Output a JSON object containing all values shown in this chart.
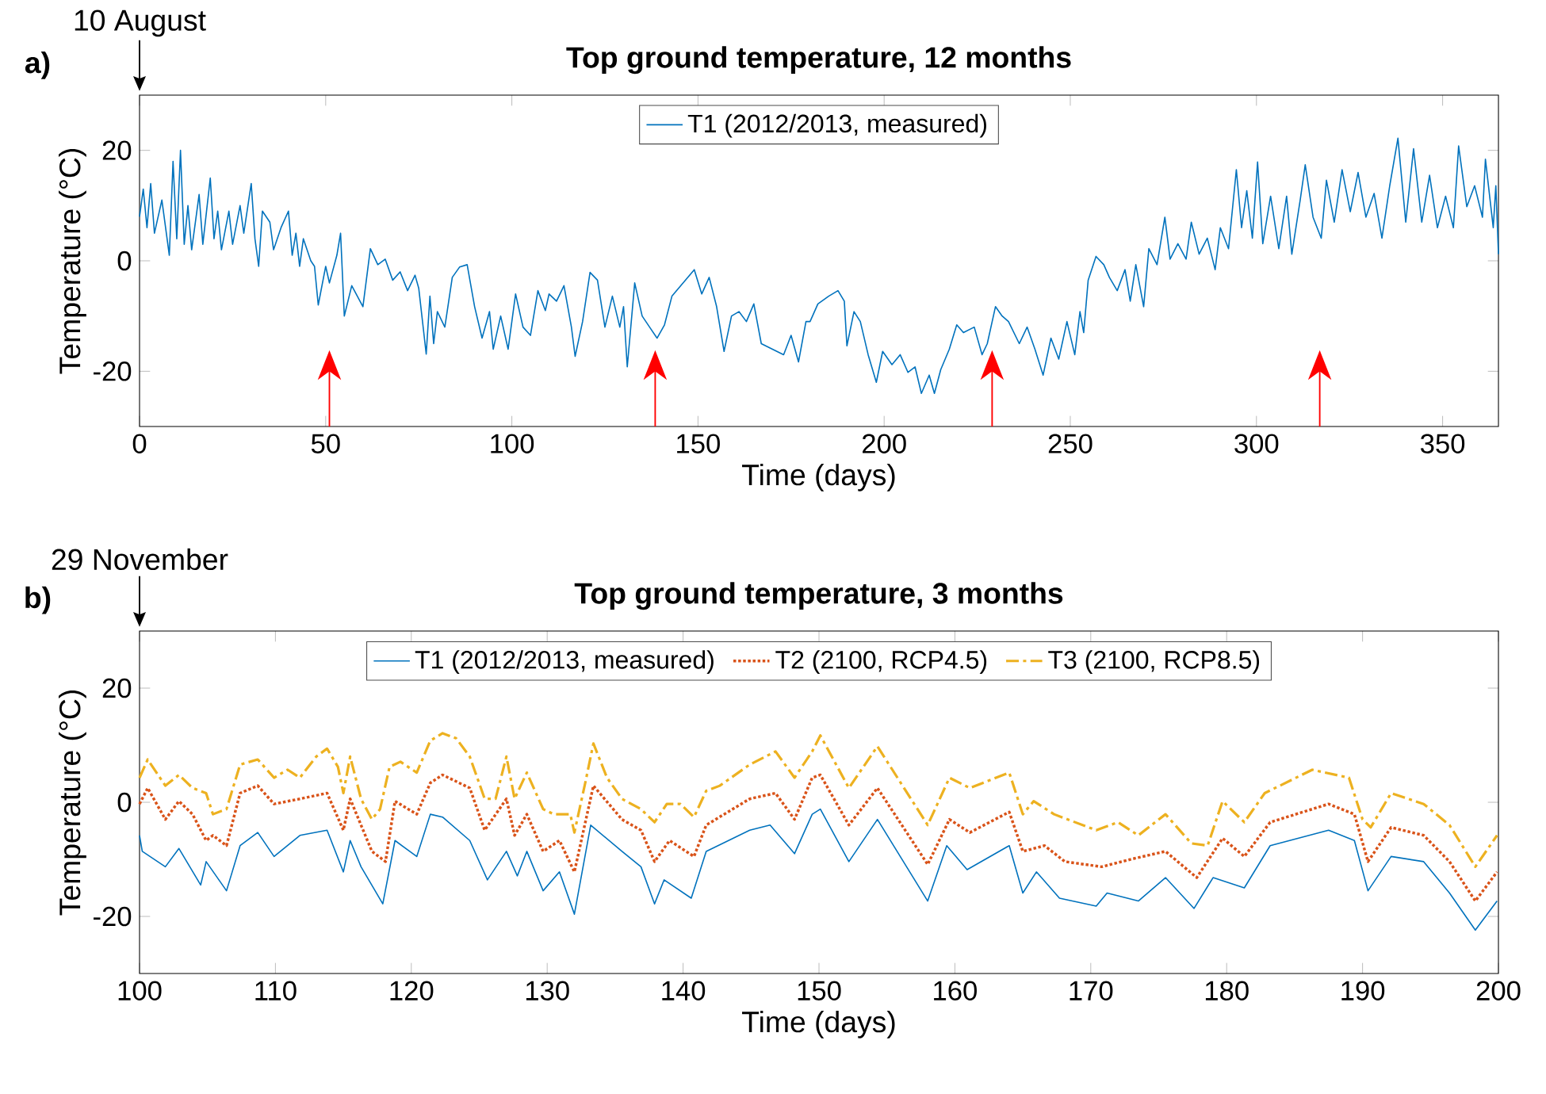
{
  "chart_data": [
    {
      "type": "line",
      "title": "Top ground temperature, 12 months",
      "xlabel": "Time (days)",
      "ylabel": "Temperature (°C)",
      "xlim": [
        0,
        365
      ],
      "ylim": [
        -30,
        30
      ],
      "xticks": [
        0,
        50,
        100,
        150,
        200,
        250,
        300,
        350
      ],
      "yticks": [
        -20,
        0,
        20
      ],
      "legend": "top",
      "annotations": [
        "a)",
        "10 August"
      ],
      "ref_lines": [
        {
          "axis": "x",
          "value": 51,
          "color": "#ff0000"
        },
        {
          "axis": "x",
          "value": 138.5,
          "color": "#ff0000"
        },
        {
          "axis": "x",
          "value": 229,
          "color": "#ff0000"
        },
        {
          "axis": "x",
          "value": 317,
          "color": "#ff0000"
        }
      ],
      "series": [
        {
          "name": "T1 (2012/2013, measured)",
          "color": "#0072bd",
          "line_style": "solid",
          "x": [
            0,
            1,
            2,
            3,
            4,
            6,
            8,
            9,
            10,
            11,
            12,
            13,
            14,
            16,
            17,
            19,
            20,
            21,
            22,
            24,
            25,
            27,
            28,
            30,
            31,
            32,
            33,
            35,
            36,
            38,
            40,
            41,
            42,
            43,
            44,
            46,
            47,
            48,
            50,
            51,
            53,
            54,
            55,
            57,
            60,
            62,
            64,
            66,
            68,
            70,
            72,
            74,
            75,
            77,
            78,
            79,
            80,
            82,
            84,
            86,
            88,
            90,
            92,
            94,
            95,
            97,
            99,
            101,
            103,
            105,
            107,
            109,
            110,
            112,
            114,
            116,
            117,
            119,
            121,
            123,
            125,
            127,
            129,
            130,
            131,
            133,
            135,
            137,
            139,
            141,
            143,
            146,
            149,
            151,
            153,
            155,
            157,
            159,
            161,
            163,
            165,
            167,
            170,
            173,
            175,
            177,
            179,
            180.1,
            182.2,
            185.1,
            187.6,
            189.3,
            190.0,
            191.9,
            193.6,
            195.7,
            197.9,
            199.6,
            202.1,
            204.3,
            206.4,
            208.3,
            210.0,
            212.1,
            213.5,
            215.2,
            217.5,
            219.5,
            221.3,
            224.2,
            226.3,
            227.7,
            229.9,
            231.7,
            233.4,
            236.3,
            238.4,
            240.5,
            242.7,
            244.8,
            246.9,
            249.1,
            251.2,
            252.6,
            253.6,
            254.8,
            256.9,
            259.0,
            260.5,
            262.6,
            264.7,
            266.1,
            267.6,
            269.7,
            271.1,
            273.3,
            275.4,
            276.8,
            278.9,
            281.1,
            282.5,
            284.6,
            286.8,
            288.9,
            290.3,
            292.5,
            294.6,
            296.0,
            297.4,
            298.9,
            300.3,
            301.7,
            303.8,
            306.0,
            308.1,
            309.5,
            311.7,
            313.1,
            315.2,
            317.4,
            318.8,
            320.9,
            323.0,
            325.2,
            327.3,
            329.4,
            331.6,
            333.7,
            335.8,
            338.0,
            340.1,
            342.2,
            344.4,
            346.5,
            348.6,
            350.8,
            352.9,
            354.3,
            356.5,
            358.6,
            360.7,
            361.5,
            363.6,
            364.3,
            365.0
          ],
          "values": [
            8,
            13,
            6,
            14,
            5,
            11,
            1,
            18,
            4,
            20,
            3,
            10,
            2,
            12,
            3,
            15,
            4,
            9,
            2,
            9,
            3,
            10,
            5,
            14,
            4,
            -1,
            9,
            7,
            2,
            6,
            9,
            1,
            5,
            -1,
            4,
            0,
            -1,
            -8,
            -1,
            -4,
            1,
            5,
            -10,
            -4.5,
            -8.3,
            2.2,
            -0.7,
            0.3,
            -3.5,
            -2,
            -5.4,
            -2.6,
            -5,
            -16.9,
            -6.4,
            -15,
            -9.2,
            -12,
            -3,
            -1.1,
            -0.7,
            -8.3,
            -14,
            -9.2,
            -16,
            -10,
            -16,
            -6,
            -12,
            -13.5,
            -5.4,
            -9,
            -6,
            -7.3,
            -4.5,
            -12,
            -17.3,
            -11,
            -2.1,
            -3.5,
            -12,
            -6.4,
            -12,
            -8.3,
            -19.2,
            -4,
            -10,
            -12,
            -14,
            -11.6,
            -6.4,
            -4,
            -1.6,
            -6,
            -3,
            -8.3,
            -16.4,
            -10,
            -9.2,
            -11,
            -7.8,
            -15,
            -16,
            -17,
            -13.5,
            -18.3,
            -11,
            -11,
            -7.8,
            -6.4,
            -5.4,
            -7.3,
            -15.4,
            -9.2,
            -11,
            -17,
            -22,
            -16.4,
            -18.8,
            -17,
            -20.2,
            -19.2,
            -24,
            -20.7,
            -24,
            -19.7,
            -16,
            -11.6,
            -13,
            -12,
            -17,
            -15,
            -8.3,
            -10,
            -11,
            -15,
            -12,
            -16,
            -20.7,
            -14,
            -17.8,
            -11,
            -17,
            -9.2,
            -13,
            -3.5,
            0.8,
            -0.7,
            -3,
            -5.4,
            -1.6,
            -7.3,
            -0.7,
            -8.3,
            2.2,
            -0.7,
            7.9,
            0.3,
            3.1,
            0.3,
            7,
            1.2,
            4.1,
            -1.6,
            6,
            2.2,
            16.5,
            6,
            12.7,
            4.1,
            17.9,
            3.1,
            11.7,
            2.2,
            11.7,
            1.2,
            10.8,
            17.4,
            7.9,
            4.1,
            14.6,
            7,
            16.5,
            8.9,
            16,
            7.9,
            12.2,
            4.1,
            13.6,
            22.2,
            7,
            20.3,
            7,
            15.5,
            6,
            11.7,
            6,
            20.8,
            9.8,
            13.6,
            7.9,
            18.4,
            6,
            13.6,
            1.2
          ]
        }
      ]
    },
    {
      "type": "line",
      "title": "Top ground temperature, 3 months",
      "xlabel": "Time (days)",
      "ylabel": "Temperature (°C)",
      "xlim": [
        100,
        200
      ],
      "ylim": [
        -30,
        30
      ],
      "xticks": [
        100,
        110,
        120,
        130,
        140,
        150,
        160,
        170,
        180,
        190,
        200
      ],
      "yticks": [
        -20,
        0,
        20
      ],
      "legend": "top",
      "annotations": [
        "b)",
        "29 November"
      ],
      "series": [
        {
          "name": "T1 (2012/2013, measured)",
          "color": "#0072bd",
          "line_style": "solid",
          "x": [
            100,
            100.2,
            101.9,
            102.9,
            104.5,
            104.9,
            106.4,
            107.4,
            108.7,
            109.9,
            111.8,
            113.8,
            115.0,
            115.5,
            116.3,
            117.9,
            118.8,
            120.4,
            121.4,
            122.3,
            124.3,
            125.6,
            127.0,
            127.8,
            128.5,
            129.7,
            130.9,
            132.0,
            133.2,
            135.5,
            136.9,
            137.9,
            138.6,
            140.6,
            141.7,
            144.9,
            146.4,
            148.2,
            149.5,
            150.1,
            152.2,
            154.3,
            158.0,
            159.4,
            160.9,
            164.0,
            165.0,
            166.0,
            167.7,
            170.4,
            171.2,
            173.5,
            175.5,
            177.6,
            179.0,
            181.3,
            183.2,
            187.5,
            189.4,
            190.4,
            192.1,
            194.5,
            196.4,
            198.3,
            199.9
          ],
          "values": [
            -5.8,
            -8.6,
            -11.3,
            -8.1,
            -14.5,
            -10.4,
            -15.5,
            -7.6,
            -5.3,
            -9.5,
            -5.8,
            -4.9,
            -12.2,
            -6.7,
            -11.3,
            -17.8,
            -6.7,
            -9.5,
            -2.1,
            -2.6,
            -6.7,
            -13.6,
            -8.6,
            -12.9,
            -8.6,
            -15.5,
            -12.2,
            -19.6,
            -4.0,
            -8.6,
            -11.3,
            -17.8,
            -13.6,
            -16.8,
            -8.6,
            -4.9,
            -4.0,
            -9.0,
            -2.1,
            -1.2,
            -10.4,
            -3.0,
            -17.3,
            -7.6,
            -11.8,
            -7.6,
            -15.9,
            -12.2,
            -16.8,
            -18.2,
            -15.9,
            -17.3,
            -13.2,
            -18.6,
            -13.2,
            -15.0,
            -7.6,
            -4.9,
            -6.7,
            -15.5,
            -9.5,
            -10.4,
            -15.9,
            -22.4,
            -17.3
          ]
        },
        {
          "name": "T2 (2100, RCP4.5)",
          "color": "#d95319",
          "line_style": "dotted",
          "x": [
            100,
            100.6,
            101.9,
            102.9,
            103.9,
            104.9,
            105.4,
            106.4,
            107.4,
            108.7,
            109.9,
            111.8,
            113.8,
            115.0,
            115.5,
            117.1,
            118.1,
            118.8,
            120.4,
            121.4,
            122.3,
            124.3,
            125.4,
            127.0,
            127.6,
            128.5,
            129.7,
            130.9,
            132.0,
            133.4,
            135.5,
            136.9,
            137.9,
            139.0,
            140.8,
            141.7,
            144.9,
            146.8,
            148.2,
            149.5,
            150.1,
            152.2,
            154.3,
            158.0,
            159.6,
            161.1,
            164.0,
            165.0,
            166.6,
            168.1,
            170.8,
            173.1,
            175.5,
            177.8,
            179.7,
            181.3,
            183.2,
            187.5,
            189.4,
            190.4,
            192.1,
            194.5,
            196.4,
            198.3,
            199.9
          ],
          "values": [
            -0.3,
            2.5,
            -3.0,
            0.2,
            -2.1,
            -6.7,
            -5.8,
            -7.6,
            1.6,
            2.9,
            -0.3,
            0.6,
            1.6,
            -4.9,
            0.6,
            -8.6,
            -10.4,
            0.2,
            -2.1,
            3.4,
            4.8,
            2.5,
            -4.9,
            0.6,
            -5.8,
            -2.1,
            -8.6,
            -6.7,
            -12.2,
            2.9,
            -3.0,
            -4.9,
            -10.4,
            -6.7,
            -9.5,
            -4.0,
            0.6,
            1.6,
            -3.0,
            4.3,
            4.8,
            -4.0,
            2.5,
            -10.9,
            -3.0,
            -5.3,
            -1.7,
            -8.6,
            -7.6,
            -10.4,
            -11.3,
            -9.9,
            -8.6,
            -13.2,
            -6.3,
            -9.5,
            -3.5,
            -0.3,
            -2.1,
            -10.4,
            -4.4,
            -5.8,
            -10.4,
            -17.3,
            -12.2
          ]
        },
        {
          "name": "T3 (2100, RCP8.5)",
          "color": "#edb120",
          "line_style": "dashed",
          "x": [
            100,
            100.6,
            101.9,
            102.9,
            103.9,
            104.9,
            105.4,
            106.4,
            107.4,
            108.7,
            109.9,
            110.9,
            111.8,
            113.0,
            113.8,
            114.6,
            115.0,
            115.5,
            116.3,
            117.1,
            117.7,
            118.4,
            119.2,
            120.4,
            121.4,
            122.3,
            123.3,
            124.3,
            125.4,
            126.2,
            127.0,
            127.6,
            128.5,
            129.7,
            130.5,
            131.7,
            132.0,
            132.8,
            133.4,
            134.4,
            135.5,
            136.9,
            137.9,
            138.8,
            139.8,
            140.8,
            141.7,
            142.7,
            144.9,
            146.8,
            148.2,
            149.5,
            150.1,
            152.2,
            154.3,
            158.0,
            159.6,
            161.1,
            164.0,
            165.0,
            165.8,
            167.3,
            170.4,
            172.0,
            173.5,
            175.5,
            177.4,
            178.6,
            179.7,
            181.3,
            182.8,
            186.3,
            189.0,
            190.0,
            190.6,
            192.1,
            194.5,
            196.4,
            198.3,
            199.9
          ],
          "values": [
            4.3,
            7.5,
            2.9,
            4.8,
            2.5,
            1.6,
            -2.1,
            -1.2,
            6.6,
            7.5,
            4.3,
            5.7,
            4.3,
            8.0,
            9.4,
            6.2,
            1.6,
            8.0,
            0.6,
            -3.0,
            -1.2,
            6.2,
            7.1,
            5.2,
            10.8,
            12.1,
            11.2,
            8.0,
            0.6,
            0.6,
            8.0,
            0.6,
            5.2,
            -1.2,
            -2.1,
            -2.1,
            -5.3,
            3.4,
            10.3,
            4.3,
            0.6,
            -1.2,
            -3.5,
            -0.3,
            -0.3,
            -2.6,
            2.0,
            2.9,
            6.6,
            8.9,
            4.3,
            8.9,
            11.7,
            2.5,
            9.8,
            -4.0,
            4.3,
            2.5,
            5.2,
            -2.1,
            0.2,
            -2.1,
            -4.9,
            -3.5,
            -5.8,
            -2.1,
            -7.2,
            -7.6,
            0.2,
            -3.5,
            1.6,
            5.7,
            4.3,
            -3.0,
            -4.4,
            1.6,
            -0.3,
            -4.0,
            -11.3,
            -5.8
          ]
        }
      ]
    }
  ]
}
